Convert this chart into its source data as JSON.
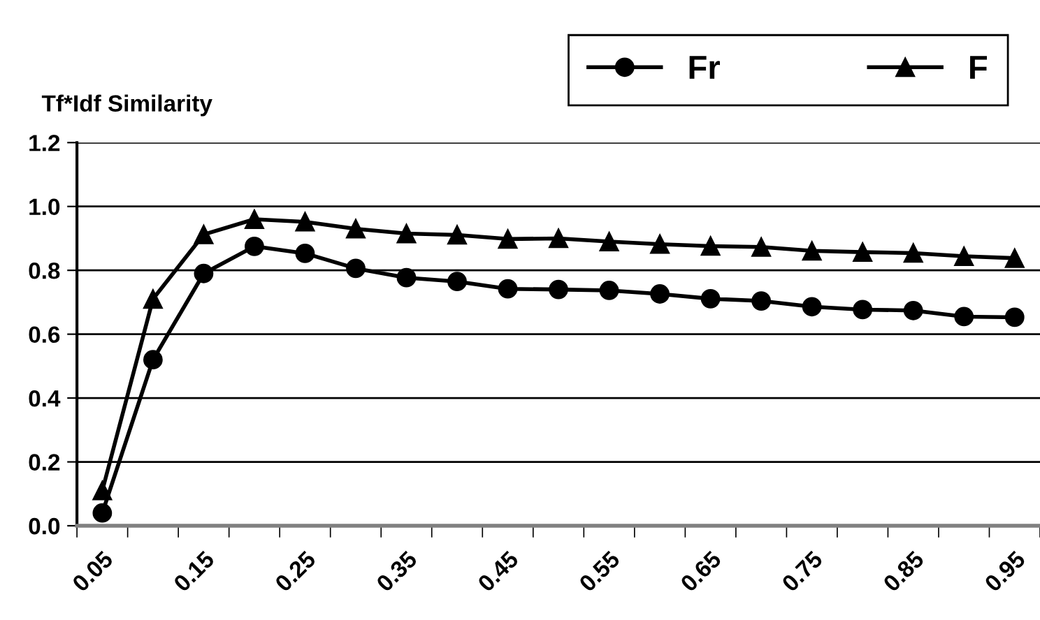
{
  "chart_data": {
    "type": "line",
    "title": "Tf*Idf Similarity",
    "categories": [
      "0.05",
      null,
      "0.15",
      null,
      "0.25",
      null,
      "0.35",
      null,
      "0.45",
      null,
      "0.55",
      null,
      "0.65",
      null,
      "0.75",
      null,
      "0.85",
      null,
      "0.95"
    ],
    "series": [
      {
        "name": "Fr",
        "color": "#000000",
        "marker": "circle",
        "values": [
          0.04,
          0.52,
          0.79,
          0.875,
          0.853,
          0.806,
          0.777,
          0.765,
          0.742,
          0.74,
          0.737,
          0.726,
          0.711,
          0.704,
          0.686,
          0.677,
          0.674,
          0.655,
          0.653
        ]
      },
      {
        "name": "F",
        "color": "#000000",
        "marker": "triangle",
        "values": [
          0.11,
          0.71,
          0.912,
          0.96,
          0.952,
          0.93,
          0.915,
          0.911,
          0.898,
          0.9,
          0.89,
          0.882,
          0.876,
          0.873,
          0.861,
          0.857,
          0.854,
          0.844,
          0.838
        ]
      }
    ],
    "ylim": [
      0,
      1.2
    ],
    "yticks": [
      {
        "value": 0,
        "label": "0.0"
      },
      0.2,
      0.4,
      0.6,
      0.8,
      {
        "value": 1,
        "label": "1.0"
      },
      1.2
    ],
    "grid": "y",
    "legend": "top right",
    "line_style": "solid"
  }
}
